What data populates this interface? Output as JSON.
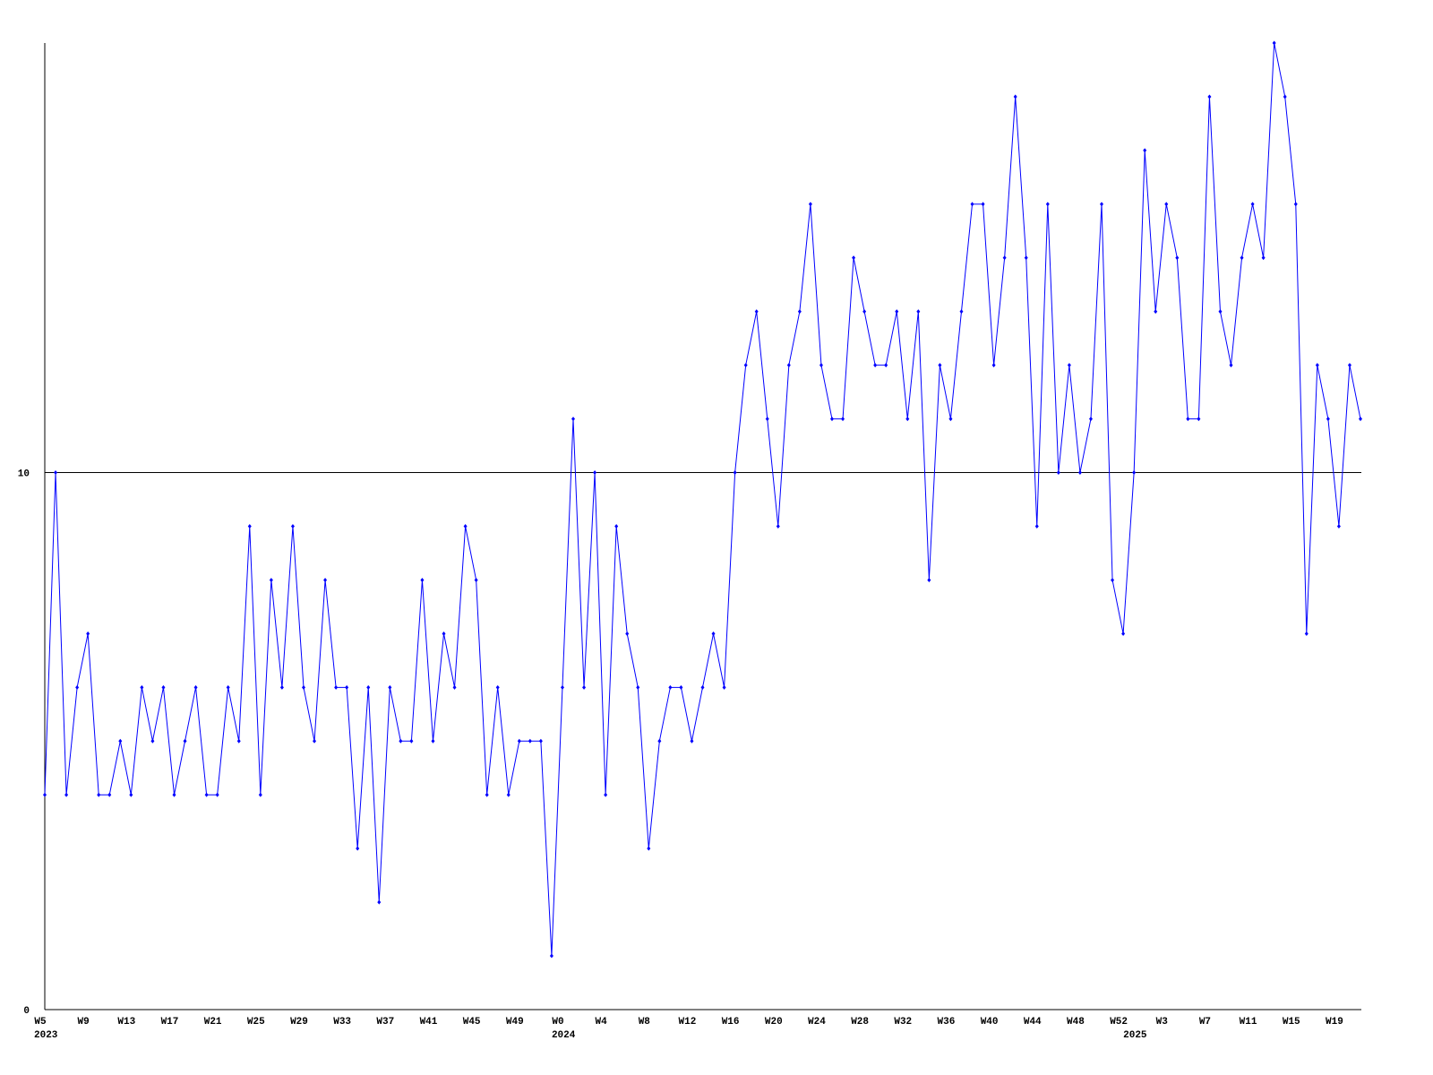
{
  "chart_data": {
    "type": "line",
    "categories": [
      "W5",
      null,
      null,
      null,
      "W9",
      null,
      null,
      null,
      "W13",
      null,
      null,
      null,
      "W17",
      null,
      null,
      null,
      "W21",
      null,
      null,
      null,
      "W25",
      null,
      null,
      null,
      "W29",
      null,
      null,
      null,
      "W33",
      null,
      null,
      null,
      "W37",
      null,
      null,
      null,
      "W41",
      null,
      null,
      null,
      "W45",
      null,
      null,
      null,
      "W49",
      null,
      null,
      null,
      "W0",
      null,
      null,
      null,
      "W4",
      null,
      null,
      null,
      "W8",
      null,
      null,
      null,
      "W12",
      null,
      null,
      null,
      "W16",
      null,
      null,
      null,
      "W20",
      null,
      null,
      null,
      "W24",
      null,
      null,
      null,
      "W28",
      null,
      null,
      null,
      "W32",
      null,
      null,
      null,
      "W36",
      null,
      null,
      null,
      "W40",
      null,
      null,
      null,
      "W44",
      null,
      null,
      null,
      "W48",
      null,
      null,
      null,
      "W52",
      null,
      null,
      null,
      "W3",
      null,
      null,
      null,
      "W7",
      null,
      null,
      null,
      "W11",
      null,
      null,
      null,
      "W15",
      null,
      null,
      null,
      "W19",
      null,
      null
    ],
    "category_years": [
      "2023",
      null,
      null,
      null,
      null,
      null,
      null,
      null,
      null,
      null,
      null,
      null,
      null,
      null,
      null,
      null,
      null,
      null,
      null,
      null,
      null,
      null,
      null,
      null,
      null,
      null,
      null,
      null,
      null,
      null,
      null,
      null,
      null,
      null,
      null,
      null,
      null,
      null,
      null,
      null,
      null,
      null,
      null,
      null,
      null,
      null,
      null,
      null,
      "2024",
      null,
      null,
      null,
      null,
      null,
      null,
      null,
      null,
      null,
      null,
      null,
      null,
      null,
      null,
      null,
      null,
      null,
      null,
      null,
      null,
      null,
      null,
      null,
      null,
      null,
      null,
      null,
      null,
      null,
      null,
      null,
      null,
      null,
      null,
      null,
      null,
      null,
      null,
      null,
      null,
      null,
      null,
      null,
      null,
      null,
      null,
      null,
      null,
      null,
      null,
      null,
      null,
      "2025",
      null,
      null,
      null,
      null,
      null,
      null,
      null,
      null,
      null,
      null,
      null,
      null,
      null,
      null,
      null,
      null,
      null,
      null,
      null,
      null
    ],
    "values": [
      4,
      10,
      4,
      6,
      7,
      4,
      4,
      5,
      4,
      6,
      5,
      6,
      4,
      5,
      6,
      4,
      4,
      6,
      5,
      9,
      4,
      8,
      6,
      9,
      6,
      5,
      8,
      6,
      6,
      3,
      6,
      2,
      6,
      5,
      5,
      8,
      5,
      7,
      6,
      9,
      8,
      4,
      6,
      4,
      5,
      5,
      5,
      1,
      6,
      11,
      6,
      10,
      4,
      9,
      7,
      6,
      3,
      5,
      6,
      6,
      5,
      6,
      7,
      6,
      10,
      12,
      13,
      11,
      9,
      12,
      13,
      15,
      12,
      11,
      11,
      14,
      13,
      12,
      12,
      13,
      11,
      13,
      8,
      12,
      11,
      13,
      15,
      15,
      12,
      14,
      17,
      14,
      9,
      15,
      10,
      12,
      10,
      11,
      15,
      8,
      7,
      10,
      16,
      13,
      15,
      14,
      11,
      11,
      17,
      13,
      12,
      14,
      15,
      14,
      18,
      17,
      15,
      7,
      12,
      11,
      9,
      12,
      11
    ],
    "color": "#0000ff",
    "ylim": [
      0,
      18
    ],
    "yticks": [
      0,
      10
    ],
    "grid": true
  }
}
